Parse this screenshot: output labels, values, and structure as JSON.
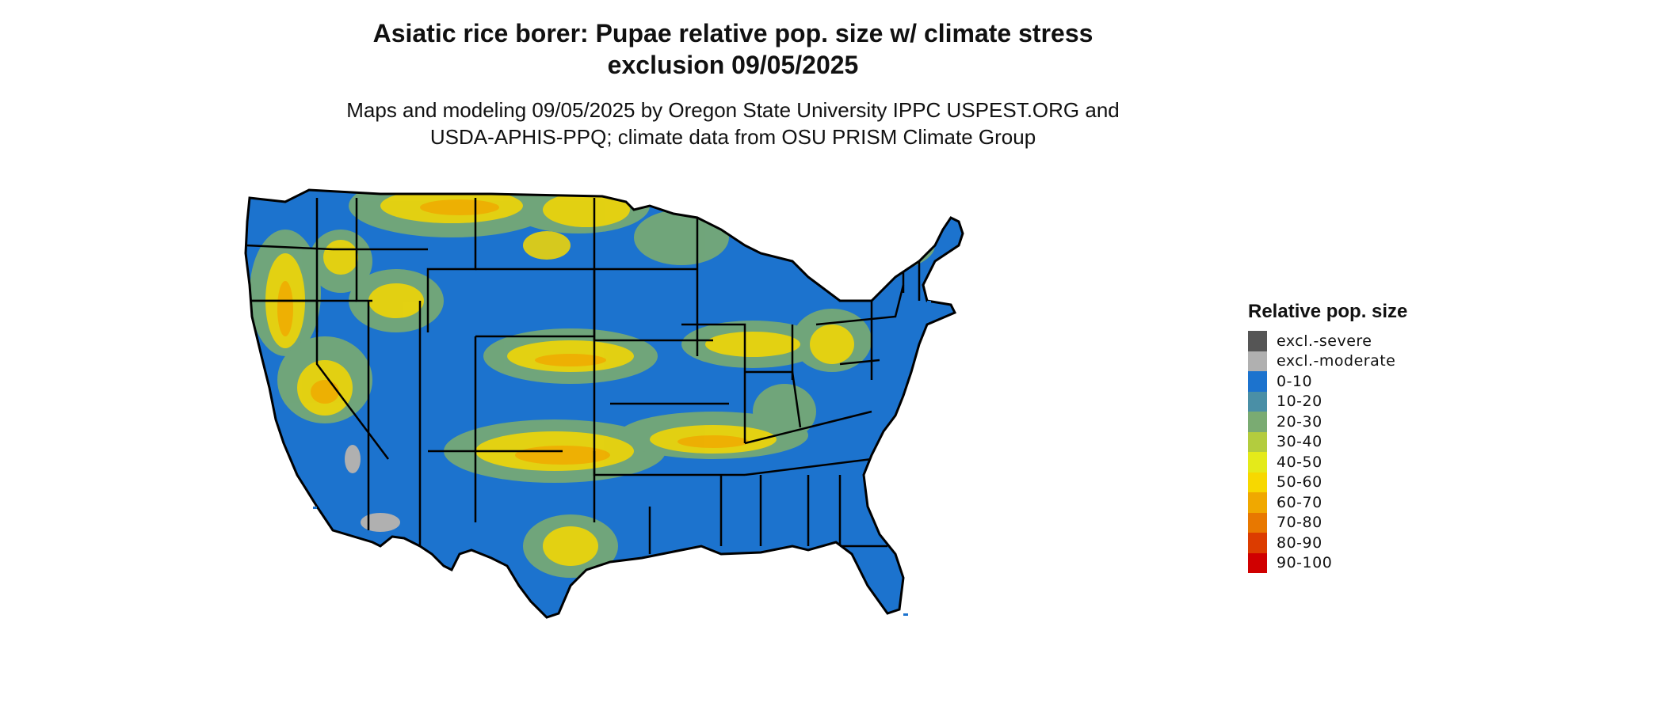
{
  "title_line1": "Asiatic rice borer: Pupae relative pop. size w/ climate stress",
  "title_line2": "exclusion 09/05/2025",
  "subtitle_line1": "Maps and modeling 09/05/2025 by Oregon State University IPPC USPEST.ORG and",
  "subtitle_line2": "USDA-APHIS-PPQ; climate data from OSU PRISM Climate Group",
  "legend": {
    "title": "Relative pop. size",
    "items": [
      {
        "label": "excl.-severe",
        "color": "#555555"
      },
      {
        "label": "excl.-moderate",
        "color": "#b0b0b0"
      },
      {
        "label": "0-10",
        "color": "#1c73ce"
      },
      {
        "label": "10-20",
        "color": "#4a8fa6"
      },
      {
        "label": "20-30",
        "color": "#7aab72"
      },
      {
        "label": "30-40",
        "color": "#b3cc3e"
      },
      {
        "label": "40-50",
        "color": "#e4ea1a"
      },
      {
        "label": "50-60",
        "color": "#f7d800"
      },
      {
        "label": "60-70",
        "color": "#f0a800"
      },
      {
        "label": "70-80",
        "color": "#e87800"
      },
      {
        "label": "80-90",
        "color": "#dc3c00"
      },
      {
        "label": "90-100",
        "color": "#d00000"
      }
    ]
  },
  "map": {
    "region": "contiguous United States",
    "base_color": "#1c73ce",
    "border_color": "#000000"
  }
}
